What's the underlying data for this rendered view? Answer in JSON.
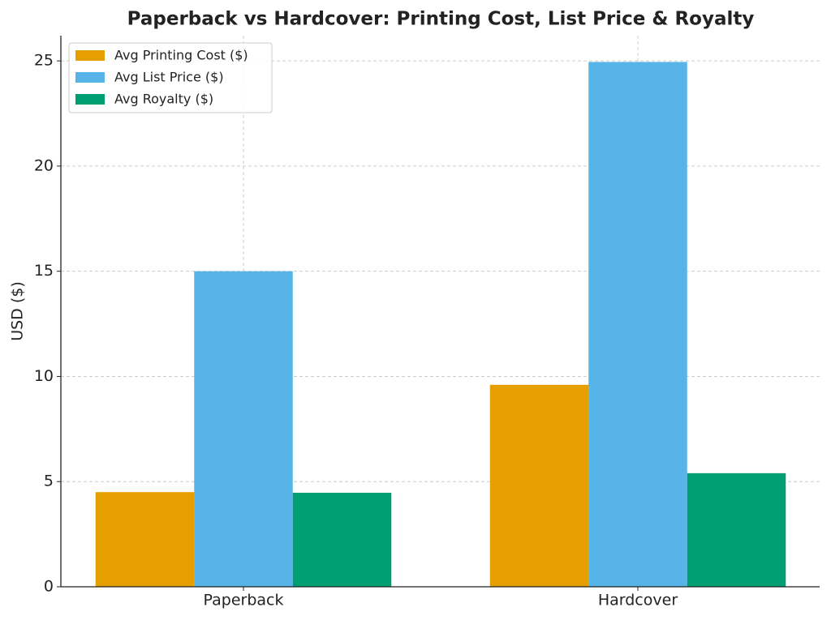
{
  "chart_data": {
    "type": "bar",
    "title": "Paperback vs Hardcover: Printing Cost, List Price & Royalty",
    "y_label": "USD ($)",
    "categories": [
      "Paperback",
      "Hardcover"
    ],
    "series": [
      {
        "name": "Avg Printing Cost ($)",
        "color": "#e69f00",
        "values": [
          4.5,
          9.6
        ]
      },
      {
        "name": "Avg List Price ($)",
        "color": "#56b4e9",
        "values": [
          15,
          24.95
        ]
      },
      {
        "name": "Avg Royalty ($)",
        "color": "#009e73",
        "values": [
          4.47,
          5.4
        ]
      }
    ],
    "ylim": [
      0,
      26.2
    ],
    "yticks": [
      0,
      5,
      10,
      15,
      20,
      25
    ],
    "grid": true,
    "legend": "upper left"
  }
}
